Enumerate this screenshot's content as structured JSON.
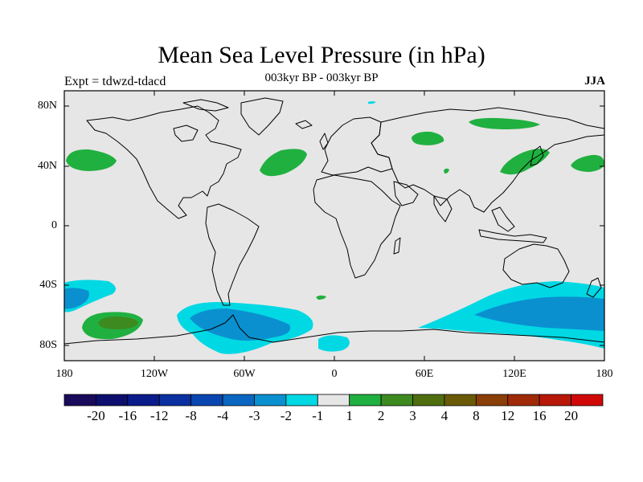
{
  "title": "Mean Sea Level Pressure (in hPa)",
  "subtitle": "003kyr BP - 003kyr BP",
  "experiment": "Expt = tdwzd-tdacd",
  "season": "JJA",
  "lat_labels": [
    "80N",
    "40N",
    "0",
    "40S",
    "80S"
  ],
  "lon_labels": [
    "180",
    "120W",
    "60W",
    "0",
    "60E",
    "120E",
    "180"
  ],
  "colorbar": {
    "labels": [
      "-20",
      "-16",
      "-12",
      "-8",
      "-4",
      "-3",
      "-2",
      "-1",
      "1",
      "2",
      "3",
      "4",
      "8",
      "12",
      "16",
      "20"
    ],
    "colors": [
      "#1a0a5c",
      "#0d0f6e",
      "#0a1c8c",
      "#0a30a0",
      "#0a46b0",
      "#0a66c0",
      "#0a90cf",
      "#00d8e4",
      "#e6e6e6",
      "#20b040",
      "#3d8a20",
      "#4e6e10",
      "#6a5a08",
      "#8a3e08",
      "#a02a08",
      "#b81808",
      "#d00808"
    ]
  },
  "map_colors": {
    "background": "#e6e6e6",
    "neg_1_2": "#00d8e4",
    "neg_2_3": "#0a90cf",
    "pos_1_2": "#20b040",
    "pos_2_3": "#3d8a20"
  }
}
